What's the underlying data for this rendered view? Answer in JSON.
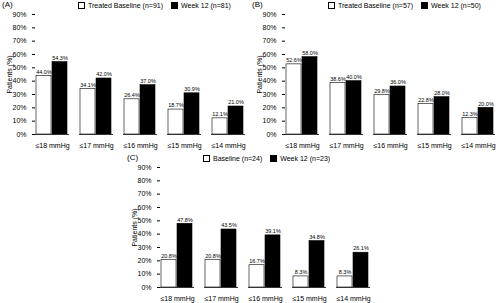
{
  "chart_data": [
    {
      "type": "bar",
      "title": "(A)",
      "y_label": "Patients (%)",
      "legend": "top",
      "data_labels": true,
      "categories": [
        "≤18 mmHg",
        "≤17 mmHg",
        "≤16 mmHg",
        "≤15 mmHg",
        "≤14 mmHg"
      ],
      "ylim": [
        0,
        90
      ],
      "yticks": [
        {
          "value": 0,
          "label": "0%"
        },
        {
          "value": 10,
          "label": "10%"
        },
        {
          "value": 20,
          "label": "20%"
        },
        {
          "value": 30,
          "label": "30%"
        },
        {
          "value": 40,
          "label": "40%"
        },
        {
          "value": 50,
          "label": "50%"
        },
        {
          "value": 60,
          "label": "60%"
        },
        {
          "value": 70,
          "label": "70%"
        },
        {
          "value": 80,
          "label": "80%"
        },
        {
          "value": 90,
          "label": "90%"
        }
      ],
      "series": [
        {
          "name": "Treated Baseline (n=91)",
          "color": "#ffffff",
          "values": [
            44.0,
            34.1,
            26.4,
            18.7,
            12.1
          ],
          "value_labels": [
            "44.0%",
            "34.1%",
            "26.4%",
            "18.7%",
            "12.1%"
          ]
        },
        {
          "name": "Week 12 (n=81)",
          "color": "#000000",
          "values": [
            54.3,
            42.0,
            37.0,
            30.9,
            21.0
          ],
          "value_labels": [
            "54.3%",
            "42.0%",
            "37.0%",
            "30.9%",
            "21.0%"
          ]
        }
      ]
    },
    {
      "type": "bar",
      "title": "(B)",
      "y_label": "Patients (%)",
      "legend": "top",
      "data_labels": true,
      "categories": [
        "≤18 mmHg",
        "≤17 mmHg",
        "≤16 mmHg",
        "≤15 mmHg",
        "≤14 mmHg"
      ],
      "ylim": [
        0,
        90
      ],
      "yticks": [
        {
          "value": 0,
          "label": "0%"
        },
        {
          "value": 10,
          "label": "10%"
        },
        {
          "value": 20,
          "label": "20%"
        },
        {
          "value": 30,
          "label": "30%"
        },
        {
          "value": 40,
          "label": "40%"
        },
        {
          "value": 50,
          "label": "50%"
        },
        {
          "value": 60,
          "label": "60%"
        },
        {
          "value": 70,
          "label": "70%"
        },
        {
          "value": 80,
          "label": "80%"
        },
        {
          "value": 90,
          "label": "90%"
        }
      ],
      "series": [
        {
          "name": "Treated Baseline (n=57)",
          "color": "#ffffff",
          "values": [
            52.6,
            38.6,
            29.8,
            22.8,
            12.3
          ],
          "value_labels": [
            "52.6%",
            "38.6%",
            "29.8%",
            "22.8%",
            "12.3%"
          ]
        },
        {
          "name": "Week 12 (n=50)",
          "color": "#000000",
          "values": [
            58.0,
            40.0,
            36.0,
            28.0,
            20.0
          ],
          "value_labels": [
            "58.0%",
            "40.0%",
            "36.0%",
            "28.0%",
            "20.0%"
          ]
        }
      ]
    },
    {
      "type": "bar",
      "title": "(C)",
      "y_label": "Patients (%)",
      "legend": "top",
      "data_labels": true,
      "categories": [
        "≤18 mmHg",
        "≤17 mmHg",
        "≤16 mmHg",
        "≤15 mmHg",
        "≤14 mmHg"
      ],
      "ylim": [
        0,
        90
      ],
      "yticks": [
        {
          "value": 0,
          "label": "0%"
        },
        {
          "value": 10,
          "label": "10%"
        },
        {
          "value": 20,
          "label": "20%"
        },
        {
          "value": 30,
          "label": "30%"
        },
        {
          "value": 40,
          "label": "40%"
        },
        {
          "value": 50,
          "label": "50%"
        },
        {
          "value": 60,
          "label": "60%"
        },
        {
          "value": 70,
          "label": "70%"
        },
        {
          "value": 80,
          "label": "80%"
        },
        {
          "value": 90,
          "label": "90%"
        }
      ],
      "series": [
        {
          "name": "Baseline (n=24)",
          "color": "#ffffff",
          "values": [
            20.8,
            20.8,
            16.7,
            8.3,
            8.3
          ],
          "value_labels": [
            "20.8%",
            "20.8%",
            "16.7%",
            "8.3%",
            "8.3%"
          ]
        },
        {
          "name": "Week 12 (n=23)",
          "color": "#000000",
          "values": [
            47.8,
            43.5,
            39.1,
            34.8,
            26.1
          ],
          "value_labels": [
            "47.8%",
            "43.5%",
            "39.1%",
            "34.8%",
            "26.1%"
          ]
        }
      ]
    }
  ]
}
